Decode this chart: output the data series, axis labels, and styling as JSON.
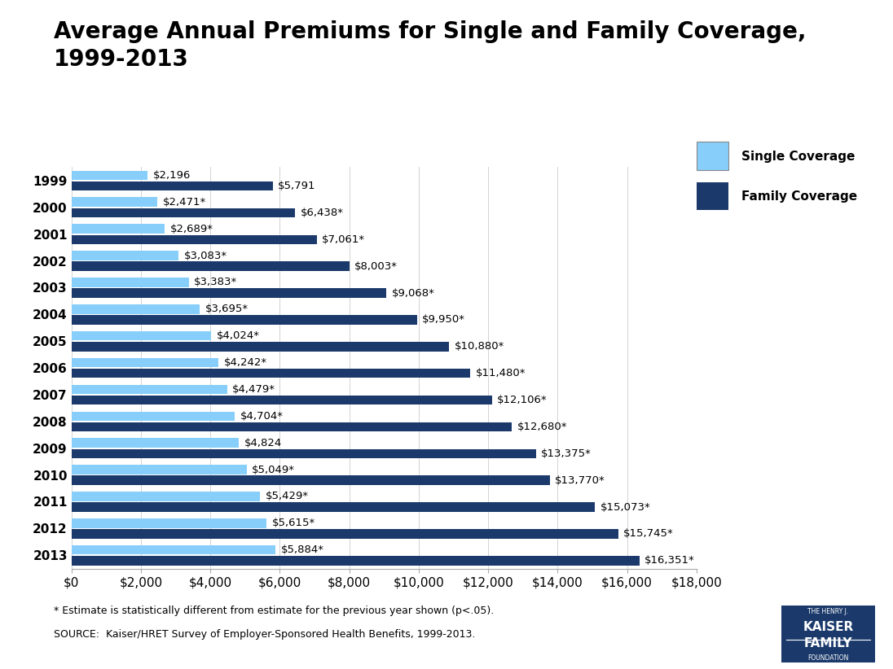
{
  "title": "Average Annual Premiums for Single and Family Coverage,\n1999-2013",
  "years": [
    "1999",
    "2000",
    "2001",
    "2002",
    "2003",
    "2004",
    "2005",
    "2006",
    "2007",
    "2008",
    "2009",
    "2010",
    "2011",
    "2012",
    "2013"
  ],
  "single": [
    2196,
    2471,
    2689,
    3083,
    3383,
    3695,
    4024,
    4242,
    4479,
    4704,
    4824,
    5049,
    5429,
    5615,
    5884
  ],
  "family": [
    5791,
    6438,
    7061,
    8003,
    9068,
    9950,
    10880,
    11480,
    12106,
    12680,
    13375,
    13770,
    15073,
    15745,
    16351
  ],
  "single_labels": [
    "$2,196",
    "$2,471*",
    "$2,689*",
    "$3,083*",
    "$3,383*",
    "$3,695*",
    "$4,024*",
    "$4,242*",
    "$4,479*",
    "$4,704*",
    "$4,824",
    "$5,049*",
    "$5,429*",
    "$5,615*",
    "$5,884*"
  ],
  "family_labels": [
    "$5,791",
    "$6,438*",
    "$7,061*",
    "$8,003*",
    "$9,068*",
    "$9,950*",
    "$10,880*",
    "$11,480*",
    "$12,106*",
    "$12,680*",
    "$13,375*",
    "$13,770*",
    "$15,073*",
    "$15,745*",
    "$16,351*"
  ],
  "single_color": "#87CEFA",
  "family_color": "#1B3A6B",
  "bg_color": "#FFFFFF",
  "xlim": [
    0,
    18000
  ],
  "xticks": [
    0,
    2000,
    4000,
    6000,
    8000,
    10000,
    12000,
    14000,
    16000,
    18000
  ],
  "footnote1": "* Estimate is statistically different from estimate for the previous year shown (p<.05).",
  "footnote2": "SOURCE:  Kaiser/HRET Survey of Employer-Sponsored Health Benefits, 1999-2013.",
  "legend_single": "Single Coverage",
  "legend_family": "Family Coverage",
  "title_fontsize": 20,
  "label_fontsize": 9.5,
  "tick_fontsize": 11,
  "bar_height": 0.35,
  "bar_gap": 0.05
}
